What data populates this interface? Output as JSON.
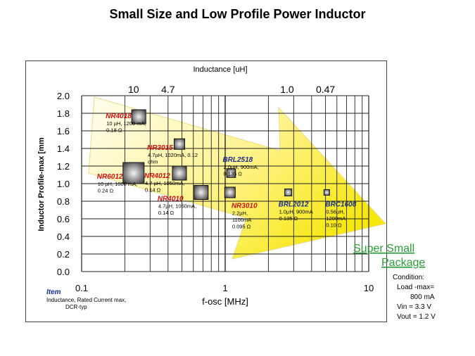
{
  "slide": {
    "title": "Small Size and Low Profile Power Inductor"
  },
  "colors": {
    "highlight_arrow": "#f2e600",
    "part_red": "#cc1111",
    "part_blue": "#1a2f8a",
    "brand_green": "#2f9a3a"
  },
  "chart_data": {
    "type": "scatter",
    "x_scale": "log",
    "xlim": [
      0.1,
      10
    ],
    "ylim": [
      0,
      2.0
    ],
    "grid": true,
    "xlabel": "f-osc [MHz]",
    "ylabel": "Inductor Profile-max [mm",
    "top_axis_label": "Inductance [uH]",
    "x_tick_labels": [
      "0.1",
      "1",
      "10"
    ],
    "y_tick_labels": [
      "2.0",
      "1.8",
      "1.6",
      "1.4",
      "1.2",
      "1.0",
      "0.8",
      "0.6",
      "0.4",
      "0.2",
      "0.0"
    ],
    "top_tick_labels": [
      {
        "text": "10",
        "x": 0.23
      },
      {
        "text": "4.7",
        "x": 0.4
      },
      {
        "text": "1.0",
        "x": 2.7
      },
      {
        "text": "0.47",
        "x": 5.0
      }
    ],
    "points": [
      {
        "name": "NR4018",
        "x": 0.25,
        "y": 1.76,
        "size_mm": 4.0,
        "color": "red",
        "details": [
          "10 µH, 1200 mA,",
          "0.18 Ω"
        ]
      },
      {
        "name": "NR3015",
        "x": 0.48,
        "y": 1.45,
        "size_mm": 3.0,
        "color": "red",
        "details": [
          "4.7µH, 1020mA, 0.12",
          "ohm"
        ]
      },
      {
        "name": "NR6012",
        "x": 0.23,
        "y": 1.12,
        "size_mm": 6.0,
        "color": "red",
        "details": [
          "10 µH, 1000 mA,",
          "0.24 Ω"
        ]
      },
      {
        "name": "NR4012",
        "x": 0.48,
        "y": 1.12,
        "size_mm": 4.0,
        "color": "red",
        "details": [
          "4.7 µH, 1050mA,",
          "0.14 Ω"
        ]
      },
      {
        "name": "NR4010",
        "x": 0.68,
        "y": 0.9,
        "size_mm": 4.0,
        "color": "red",
        "details": [
          "4.7µH, 1050mA,",
          "0.14 Ω"
        ]
      },
      {
        "name": "BRL2518",
        "x": 1.1,
        "y": 1.12,
        "size_mm": 2.5,
        "color": "blue",
        "details": [
          "2.0µH, 900mA,",
          "0.135 Ω"
        ]
      },
      {
        "name": "NR3010",
        "x": 1.08,
        "y": 0.9,
        "size_mm": 3.0,
        "color": "red",
        "details": [
          "2.2µH,",
          "1100mA",
          "0.095 Ω"
        ]
      },
      {
        "name": "BRL2012",
        "x": 2.75,
        "y": 0.9,
        "size_mm": 2.0,
        "color": "blue",
        "details": [
          "1.0µH, 900mA",
          "0.135 Ω"
        ]
      },
      {
        "name": "BRC1608",
        "x": 5.1,
        "y": 0.9,
        "size_mm": 1.6,
        "color": "blue",
        "details": [
          "0.56µH,",
          "1200mA",
          "0.10 Ω"
        ]
      }
    ]
  },
  "legend": {
    "item_heading": "Item",
    "item_lines": [
      "Inductance, Rated Current max,",
      "DCR-typ"
    ]
  },
  "brand": {
    "line1": "Super Small",
    "line2": "Package"
  },
  "condition": {
    "heading": "Condition:",
    "lines": [
      "Load -max=",
      "800 mA",
      "Vin = 3.3 V",
      "Vout = 1.2 V"
    ]
  }
}
